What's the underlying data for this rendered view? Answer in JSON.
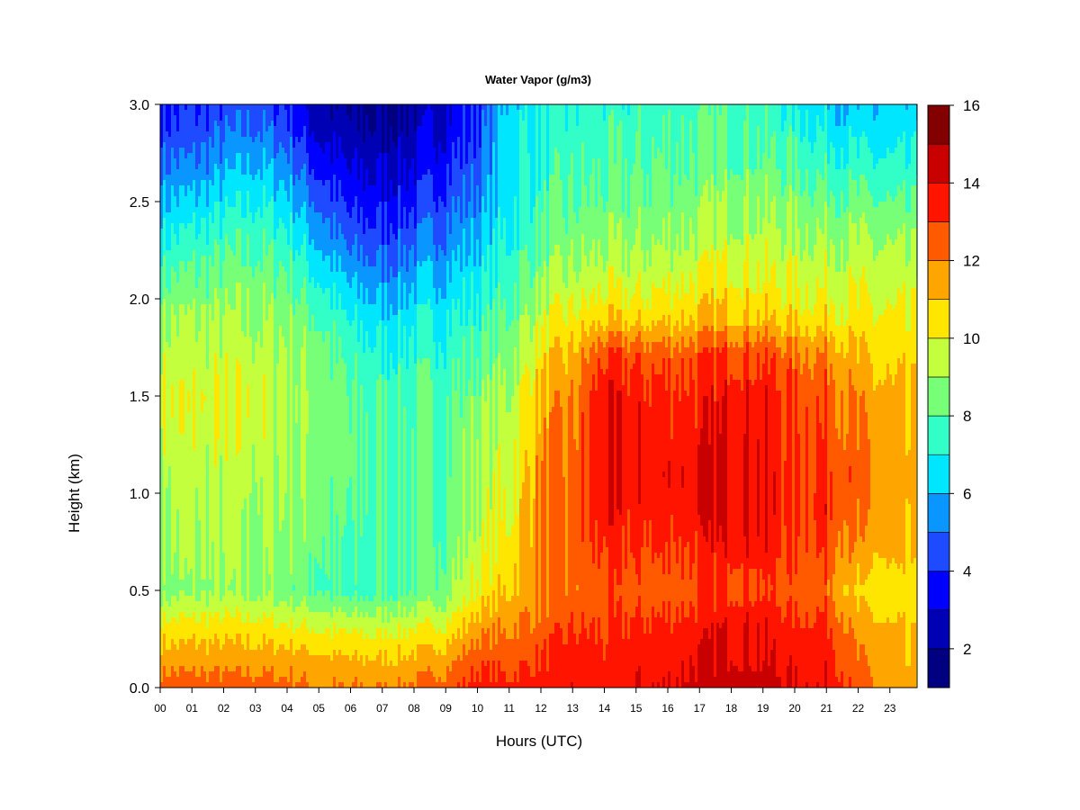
{
  "chart_data": {
    "type": "heatmap",
    "title": "Water Vapor (g/m3)",
    "xlabel": "Hours (UTC)",
    "ylabel": "Height (km)",
    "xlim": [
      0,
      23.9
    ],
    "ylim": [
      0.0,
      3.0
    ],
    "x_ticks": [
      "00",
      "01",
      "02",
      "03",
      "04",
      "05",
      "06",
      "07",
      "08",
      "09",
      "10",
      "11",
      "12",
      "13",
      "14",
      "15",
      "16",
      "17",
      "18",
      "19",
      "20",
      "21",
      "22",
      "23"
    ],
    "y_ticks": [
      "0.0",
      "0.5",
      "1.0",
      "1.5",
      "2.0",
      "2.5",
      "3.0"
    ],
    "colorbar": {
      "range": [
        1,
        16
      ],
      "ticks": [
        "2",
        "4",
        "6",
        "8",
        "10",
        "12",
        "14",
        "16"
      ],
      "levels": [
        1,
        2,
        3,
        4,
        5,
        6,
        7,
        8,
        9,
        10,
        11,
        12,
        13,
        14,
        15,
        16
      ],
      "colors": [
        "#000080",
        "#0000b4",
        "#0000ff",
        "#1e4bff",
        "#0a96ff",
        "#00e6ff",
        "#32ffc8",
        "#78ff78",
        "#c3ff3c",
        "#ffe600",
        "#ffa500",
        "#ff5a00",
        "#ff1400",
        "#c80000",
        "#820000"
      ]
    },
    "profile_heights_km": [
      0.0,
      0.15,
      0.3,
      0.5,
      0.7,
      0.9,
      1.1,
      1.3,
      1.5,
      1.7,
      1.9,
      2.1,
      2.3,
      2.5,
      2.7,
      2.9,
      3.0
    ],
    "profiles": [
      {
        "hour": 0,
        "values": [
          12.5,
          11.5,
          10.5,
          8.5,
          9.0,
          9.2,
          9.3,
          9.6,
          9.8,
          9.5,
          9.0,
          8.0,
          7.0,
          6.0,
          5.0,
          4.0,
          3.7
        ]
      },
      {
        "hour": 1,
        "values": [
          12.5,
          11.5,
          10.5,
          8.7,
          9.0,
          9.2,
          9.4,
          9.7,
          9.8,
          9.5,
          9.0,
          8.2,
          7.3,
          6.2,
          5.0,
          4.2,
          3.9
        ]
      },
      {
        "hour": 2,
        "values": [
          12.5,
          11.5,
          10.5,
          8.8,
          9.0,
          9.2,
          9.4,
          9.6,
          9.7,
          9.5,
          9.0,
          8.3,
          7.6,
          6.6,
          5.5,
          4.6,
          4.3
        ]
      },
      {
        "hour": 3,
        "values": [
          12.5,
          11.5,
          10.5,
          8.8,
          9.0,
          9.1,
          9.3,
          9.5,
          9.6,
          9.4,
          9.0,
          8.5,
          7.8,
          7.0,
          6.0,
          4.9,
          4.5
        ]
      },
      {
        "hour": 4,
        "values": [
          12.3,
          11.5,
          10.3,
          8.5,
          8.8,
          9.0,
          9.2,
          9.3,
          9.4,
          9.2,
          8.8,
          8.2,
          7.4,
          6.4,
          5.4,
          4.3,
          4.0
        ]
      },
      {
        "hour": 5,
        "values": [
          12.0,
          11.2,
          10.0,
          8.0,
          8.2,
          8.4,
          8.6,
          8.8,
          8.8,
          8.6,
          8.0,
          7.0,
          5.9,
          4.8,
          3.6,
          2.6,
          2.3
        ]
      },
      {
        "hour": 6,
        "values": [
          12.0,
          11.0,
          9.8,
          7.5,
          7.6,
          7.8,
          8.0,
          8.0,
          7.9,
          7.6,
          6.8,
          5.8,
          4.6,
          3.6,
          2.8,
          2.0,
          1.8
        ]
      },
      {
        "hour": 7,
        "values": [
          12.0,
          11.0,
          9.8,
          7.8,
          7.8,
          8.0,
          8.0,
          7.9,
          7.8,
          7.2,
          6.4,
          5.4,
          4.4,
          3.5,
          2.7,
          2.0,
          1.8
        ]
      },
      {
        "hour": 8,
        "values": [
          12.2,
          11.2,
          10.0,
          8.0,
          8.0,
          8.0,
          8.0,
          7.9,
          7.8,
          7.4,
          6.8,
          5.8,
          4.8,
          3.8,
          3.0,
          2.3,
          2.1
        ]
      },
      {
        "hour": 9,
        "values": [
          12.6,
          11.6,
          10.3,
          8.6,
          8.4,
          8.2,
          8.2,
          8.0,
          7.8,
          7.6,
          7.0,
          6.2,
          5.4,
          4.6,
          3.8,
          3.2,
          3.0
        ]
      },
      {
        "hour": 10,
        "values": [
          13.6,
          12.6,
          11.6,
          10.2,
          9.6,
          9.3,
          9.2,
          9.0,
          8.6,
          8.0,
          7.4,
          6.8,
          6.0,
          5.3,
          4.6,
          4.2,
          4.0
        ]
      },
      {
        "hour": 11,
        "values": [
          13.3,
          12.6,
          12.0,
          11.0,
          10.5,
          10.0,
          9.8,
          9.5,
          9.2,
          8.7,
          8.2,
          7.6,
          7.2,
          6.8,
          6.6,
          6.5,
          6.4
        ]
      },
      {
        "hour": 12,
        "values": [
          13.6,
          13.0,
          12.4,
          12.0,
          12.0,
          12.0,
          11.8,
          11.6,
          11.2,
          10.5,
          9.6,
          8.8,
          8.0,
          7.6,
          7.3,
          7.1,
          7.0
        ]
      },
      {
        "hour": 13,
        "values": [
          13.8,
          13.5,
          13.0,
          12.2,
          12.2,
          12.3,
          12.2,
          12.0,
          11.8,
          11.2,
          10.2,
          9.2,
          8.5,
          8.0,
          7.6,
          7.3,
          7.2
        ]
      },
      {
        "hour": 14,
        "values": [
          13.5,
          13.2,
          13.0,
          12.5,
          13.2,
          13.6,
          13.8,
          13.9,
          13.8,
          13.0,
          10.8,
          9.6,
          8.8,
          8.2,
          7.8,
          7.4,
          7.3
        ]
      },
      {
        "hour": 15,
        "values": [
          14.0,
          13.6,
          13.2,
          12.5,
          13.0,
          13.4,
          13.5,
          13.6,
          13.4,
          12.8,
          10.6,
          9.5,
          8.8,
          8.3,
          7.9,
          7.6,
          7.4
        ]
      },
      {
        "hour": 16,
        "values": [
          14.0,
          13.6,
          13.3,
          12.5,
          13.0,
          13.6,
          13.7,
          13.6,
          13.3,
          12.6,
          10.8,
          9.8,
          9.0,
          8.5,
          8.1,
          7.8,
          7.6
        ]
      },
      {
        "hour": 17,
        "values": [
          14.4,
          14.0,
          13.6,
          12.7,
          13.3,
          13.7,
          13.8,
          13.6,
          13.4,
          12.8,
          11.0,
          10.0,
          9.2,
          8.6,
          8.2,
          7.8,
          7.6
        ]
      },
      {
        "hour": 18,
        "values": [
          14.6,
          14.2,
          14.1,
          13.0,
          13.8,
          14.2,
          14.2,
          14.0,
          13.8,
          13.2,
          11.2,
          10.4,
          9.6,
          9.0,
          8.4,
          8.0,
          7.8
        ]
      },
      {
        "hour": 19,
        "values": [
          14.4,
          14.0,
          14.0,
          12.9,
          13.6,
          14.0,
          13.9,
          13.7,
          13.6,
          13.0,
          11.0,
          10.0,
          9.4,
          8.8,
          8.2,
          7.7,
          7.5
        ]
      },
      {
        "hour": 20,
        "values": [
          14.0,
          13.6,
          13.3,
          12.4,
          12.8,
          13.2,
          13.2,
          13.0,
          12.8,
          12.3,
          10.6,
          9.8,
          9.2,
          8.6,
          7.9,
          7.3,
          7.0
        ]
      },
      {
        "hour": 21,
        "values": [
          14.0,
          13.6,
          13.4,
          12.4,
          13.0,
          13.4,
          13.3,
          13.0,
          12.8,
          12.2,
          10.6,
          9.8,
          9.2,
          8.4,
          7.6,
          6.8,
          6.5
        ]
      },
      {
        "hour": 22,
        "values": [
          12.6,
          12.0,
          11.5,
          10.5,
          11.4,
          12.0,
          12.2,
          12.0,
          11.6,
          11.0,
          10.2,
          9.6,
          9.0,
          8.2,
          7.2,
          6.3,
          6.0
        ]
      },
      {
        "hour": 23,
        "values": [
          11.6,
          11.2,
          11.0,
          10.4,
          11.0,
          11.4,
          11.5,
          11.3,
          11.0,
          10.6,
          10.0,
          9.4,
          8.8,
          7.9,
          7.0,
          6.2,
          6.0
        ]
      },
      {
        "hour": 23.9,
        "values": [
          11.0,
          10.8,
          10.6,
          10.2,
          10.5,
          10.8,
          10.9,
          10.8,
          10.6,
          10.3,
          9.8,
          9.2,
          8.6,
          7.8,
          6.9,
          6.2,
          6.0
        ]
      }
    ]
  }
}
